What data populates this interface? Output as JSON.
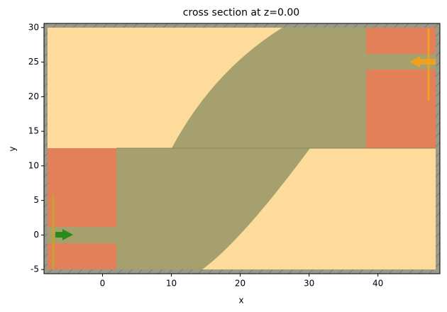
{
  "chart_data": {
    "type": "structure",
    "title": "cross section at z=0.00",
    "x_label": "x",
    "y_label": "y",
    "xlim": [
      -8.5,
      49
    ],
    "ylim": [
      -5.6,
      30.6
    ],
    "xticks": [
      0,
      10,
      20,
      30,
      40
    ],
    "yticks": [
      -5,
      0,
      5,
      10,
      15,
      20,
      25,
      30
    ]
  }
}
